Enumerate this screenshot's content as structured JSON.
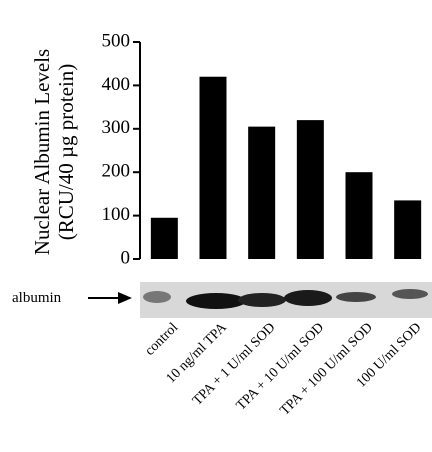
{
  "chart_data": {
    "type": "bar",
    "ylabel": [
      "Nuclear Albumin Levels",
      "(RCU/40 µg protein)"
    ],
    "categories": [
      "control",
      "10 ng/ml TPA",
      "TPA + 1 U/ml SOD",
      "TPA + 10 U/ml SOD",
      "TPA + 100 U/ml SOD",
      "100 U/ml SOD"
    ],
    "values": [
      95,
      420,
      305,
      320,
      200,
      135
    ],
    "color": "#000000",
    "ylim": [
      0,
      500
    ],
    "yticks": [
      0,
      100,
      200,
      300,
      400,
      500
    ],
    "blot_label": "albumin"
  }
}
